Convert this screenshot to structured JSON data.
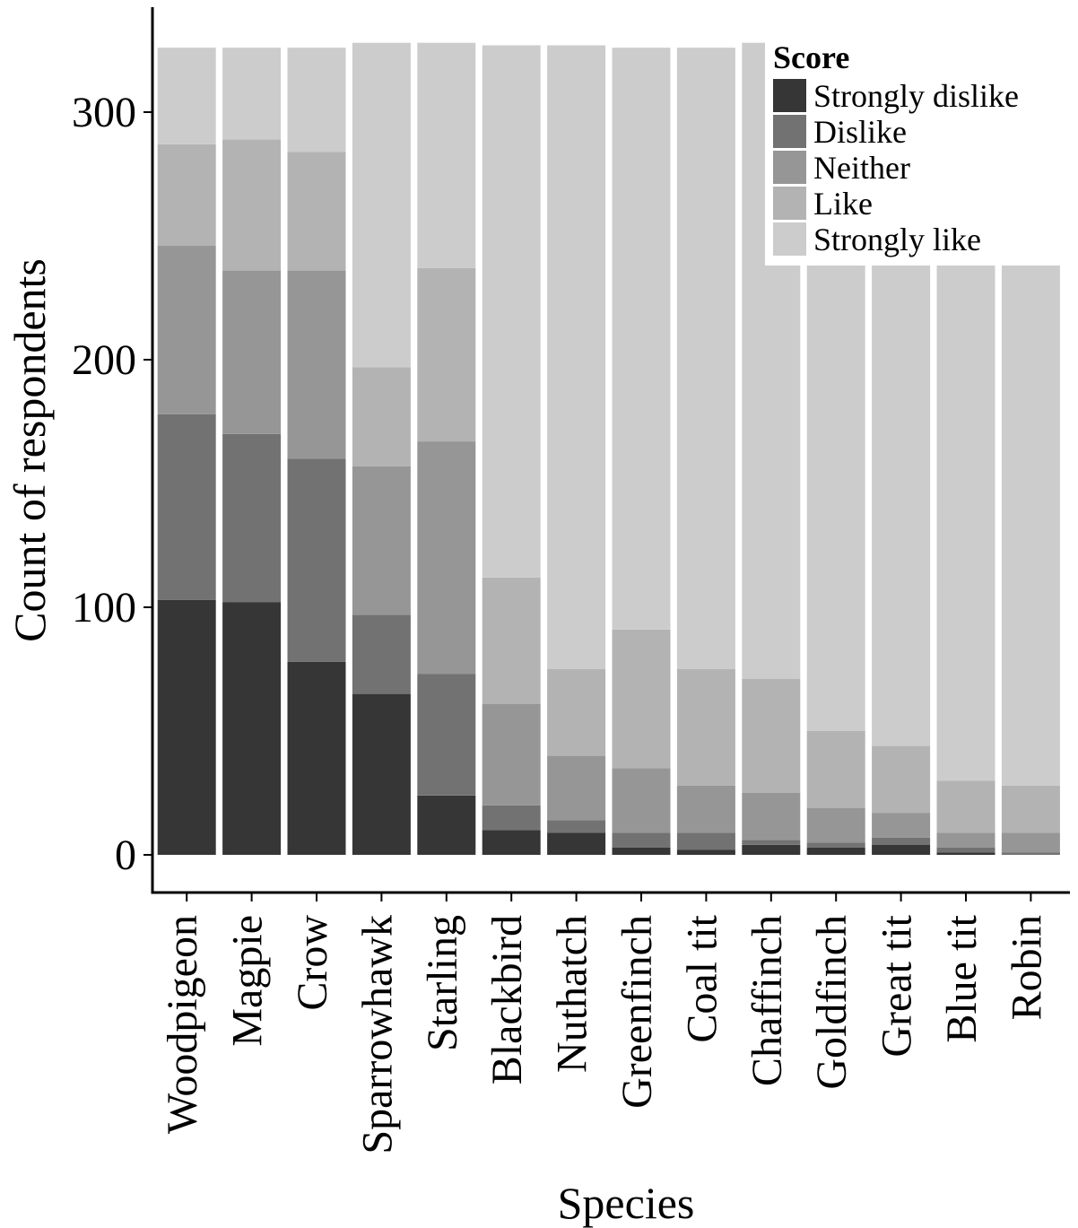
{
  "chart_data": {
    "type": "bar",
    "stacked": true,
    "xlabel": "Species",
    "ylabel": "Count of respondents",
    "ylim": [
      -15,
      345
    ],
    "yticks": [
      0,
      100,
      200,
      300
    ],
    "grid": false,
    "legend": {
      "title": "Score",
      "placement": "top-right"
    },
    "categories": [
      "Woodpigeon",
      "Magpie",
      "Crow",
      "Sparrowhawk",
      "Starling",
      "Blackbird",
      "Nuthatch",
      "Greenfinch",
      "Coal tit",
      "Chaffinch",
      "Goldfinch",
      "Great tit",
      "Blue tit",
      "Robin"
    ],
    "series": [
      {
        "name": "Strongly dislike",
        "color": "#363636",
        "values": [
          103,
          102,
          78,
          65,
          24,
          10,
          9,
          3,
          2,
          4,
          3,
          4,
          1,
          0
        ]
      },
      {
        "name": "Dislike",
        "color": "#727272",
        "values": [
          75,
          68,
          82,
          32,
          49,
          10,
          5,
          6,
          7,
          2,
          2,
          3,
          2,
          1
        ]
      },
      {
        "name": "Neither",
        "color": "#969696",
        "values": [
          68,
          66,
          76,
          60,
          94,
          41,
          26,
          26,
          19,
          19,
          14,
          10,
          6,
          8
        ]
      },
      {
        "name": "Like",
        "color": "#b3b3b3",
        "values": [
          41,
          53,
          48,
          40,
          70,
          51,
          35,
          56,
          47,
          46,
          31,
          27,
          21,
          19
        ]
      },
      {
        "name": "Strongly like",
        "color": "#cccccc",
        "values": [
          39,
          37,
          42,
          131,
          91,
          215,
          252,
          235,
          251,
          257,
          277,
          283,
          270,
          278
        ]
      }
    ]
  }
}
